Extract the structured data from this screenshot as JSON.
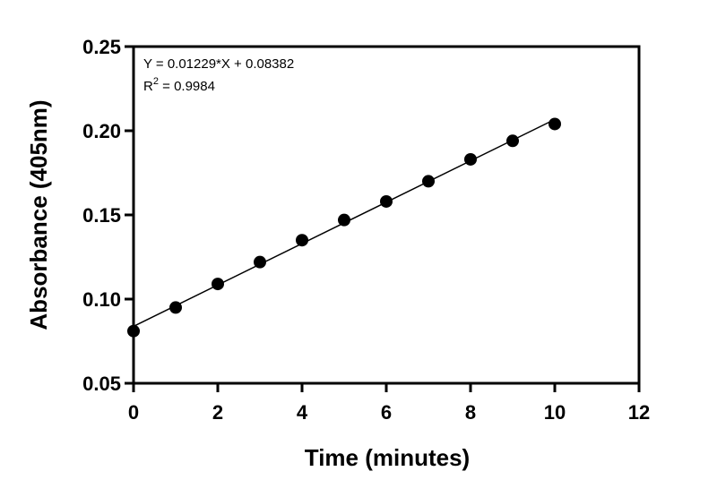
{
  "chart_data": {
    "type": "scatter",
    "xlabel": "Time (minutes)",
    "ylabel": "Absorbance (405nm)",
    "xlim": [
      0,
      12
    ],
    "ylim": [
      0.05,
      0.25
    ],
    "x_ticks": [
      "0",
      "2",
      "4",
      "6",
      "8",
      "10",
      "12"
    ],
    "y_ticks": [
      "0.05",
      "0.10",
      "0.15",
      "0.20",
      "0.25"
    ],
    "grid": false,
    "series": [
      {
        "x": [
          0,
          1,
          2,
          3,
          4,
          5,
          6,
          7,
          8,
          9,
          10
        ],
        "y": [
          0.081,
          0.095,
          0.109,
          0.122,
          0.135,
          0.147,
          0.158,
          0.17,
          0.183,
          0.194,
          0.204
        ],
        "marker_color": "#000000"
      }
    ],
    "fit_line": {
      "slope": 0.01229,
      "intercept": 0.08382,
      "x_range": [
        0,
        10
      ],
      "color": "#000000"
    },
    "annotations": {
      "equation": "Y = 0.01229*X + 0.08382",
      "r2_prefix": "R",
      "r2_superscript": "2",
      "r2_suffix": " = 0.9984"
    }
  }
}
